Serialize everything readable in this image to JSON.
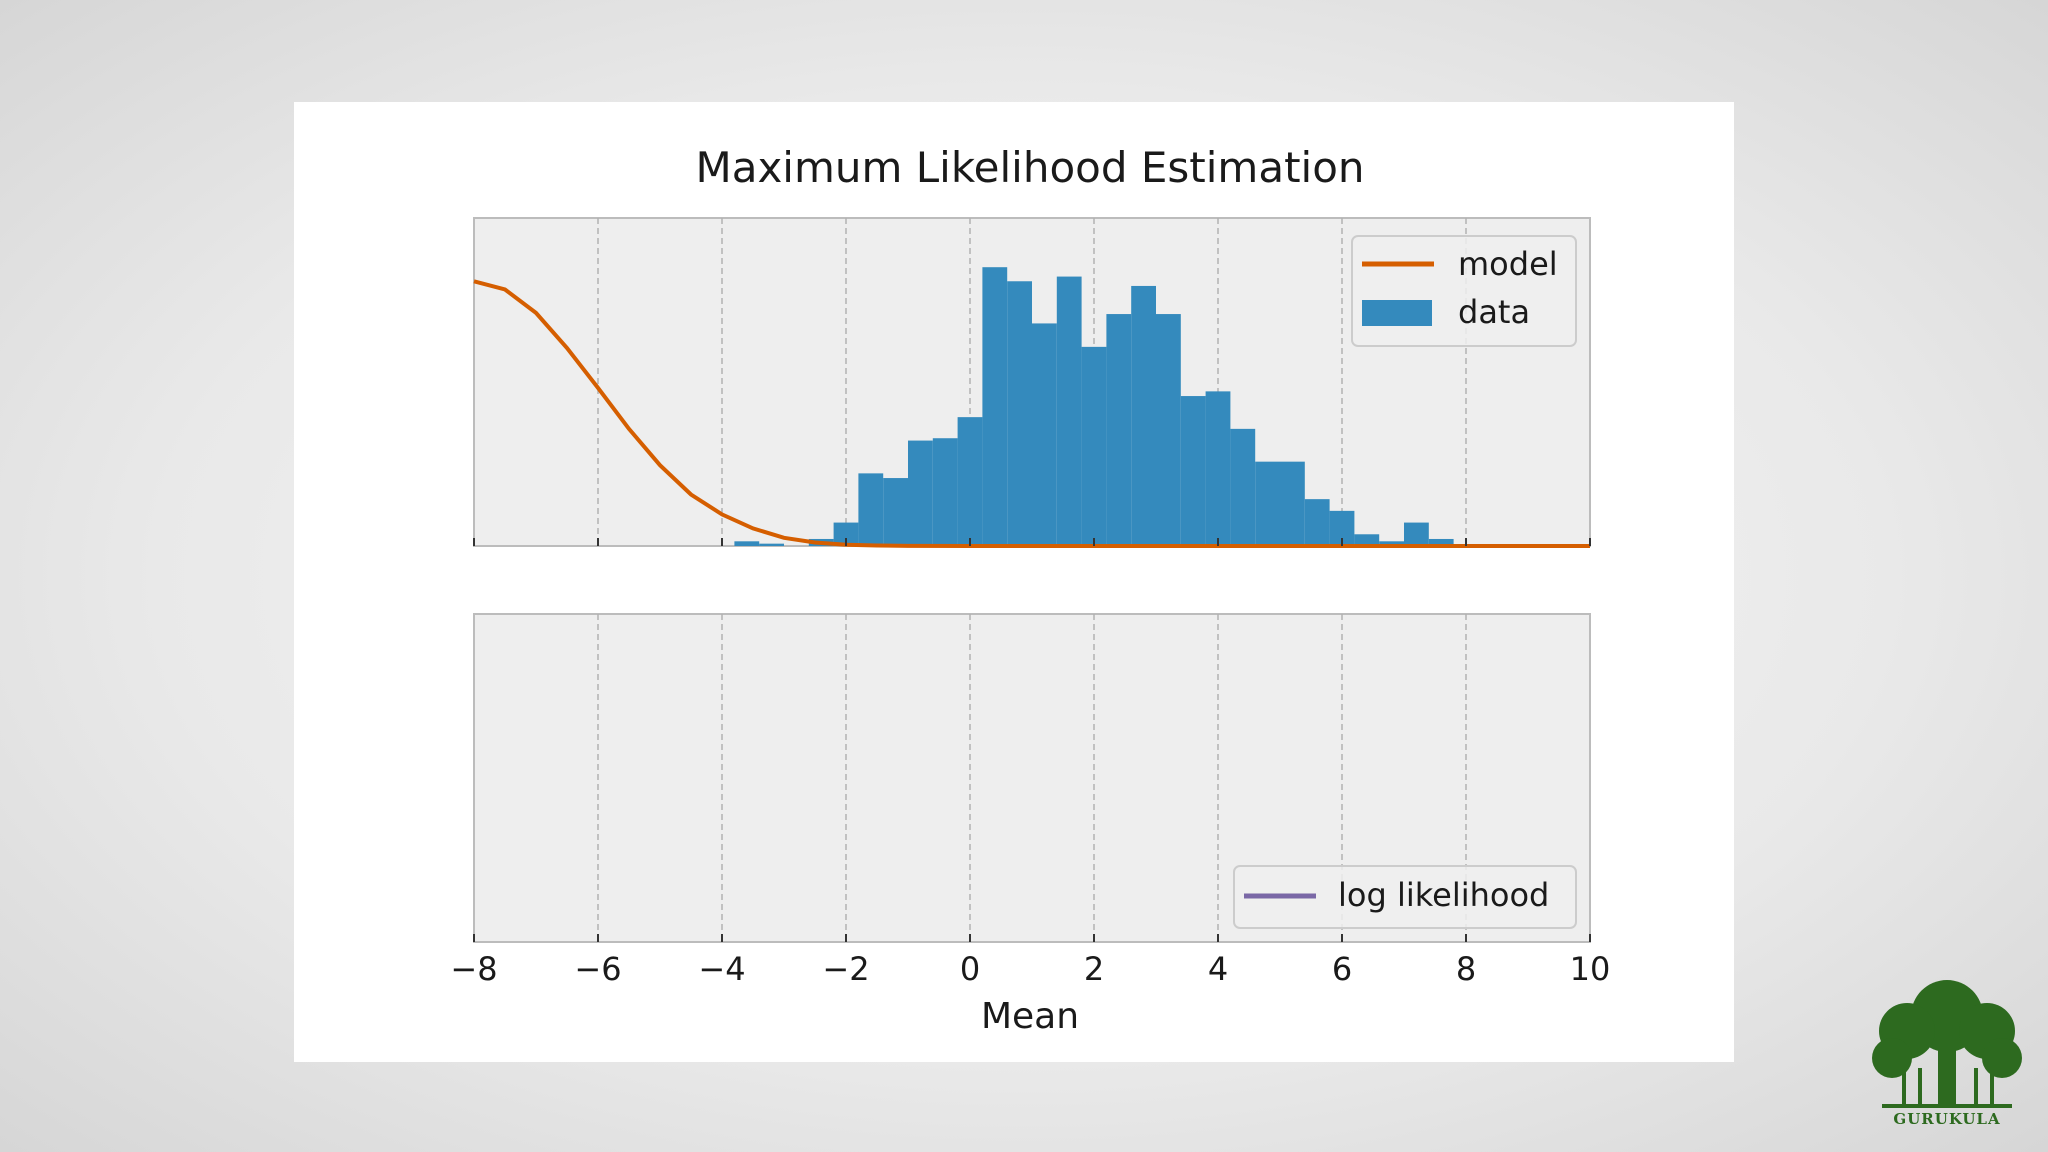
{
  "chart_data": {
    "type": "bar",
    "title": "Maximum Likelihood Estimation",
    "xlabel": "Mean",
    "xlim": [
      -8,
      10
    ],
    "xticks": [
      -8,
      -6,
      -4,
      -2,
      0,
      2,
      4,
      6,
      8,
      10
    ],
    "xtick_labels": [
      "−8",
      "−6",
      "−4",
      "−2",
      "0",
      "2",
      "4",
      "6",
      "8",
      "10"
    ],
    "grid": "vertical dashed",
    "panels": [
      {
        "id": "top",
        "legend": {
          "position": "top-right",
          "entries": [
            "model",
            "data"
          ]
        },
        "ylim": [
          0,
          0.28
        ],
        "series": [
          {
            "name": "data",
            "kind": "histogram",
            "color": "#348abd",
            "bins": [
              {
                "x0": -3.8,
                "x1": -3.4,
                "y": 0.004
              },
              {
                "x0": -3.4,
                "x1": -3.0,
                "y": 0.002
              },
              {
                "x0": -2.6,
                "x1": -2.2,
                "y": 0.006
              },
              {
                "x0": -2.2,
                "x1": -1.8,
                "y": 0.02
              },
              {
                "x0": -1.8,
                "x1": -1.4,
                "y": 0.062
              },
              {
                "x0": -1.4,
                "x1": -1.0,
                "y": 0.058
              },
              {
                "x0": -1.0,
                "x1": -0.6,
                "y": 0.09
              },
              {
                "x0": -0.6,
                "x1": -0.2,
                "y": 0.092
              },
              {
                "x0": -0.2,
                "x1": 0.2,
                "y": 0.11
              },
              {
                "x0": 0.2,
                "x1": 0.6,
                "y": 0.238
              },
              {
                "x0": 0.6,
                "x1": 1.0,
                "y": 0.226
              },
              {
                "x0": 1.0,
                "x1": 1.4,
                "y": 0.19
              },
              {
                "x0": 1.4,
                "x1": 1.8,
                "y": 0.23
              },
              {
                "x0": 1.8,
                "x1": 2.2,
                "y": 0.17
              },
              {
                "x0": 2.2,
                "x1": 2.6,
                "y": 0.198
              },
              {
                "x0": 2.6,
                "x1": 3.0,
                "y": 0.222
              },
              {
                "x0": 3.0,
                "x1": 3.4,
                "y": 0.198
              },
              {
                "x0": 3.4,
                "x1": 3.8,
                "y": 0.128
              },
              {
                "x0": 3.8,
                "x1": 4.2,
                "y": 0.132
              },
              {
                "x0": 4.2,
                "x1": 4.6,
                "y": 0.1
              },
              {
                "x0": 4.6,
                "x1": 5.0,
                "y": 0.072
              },
              {
                "x0": 5.0,
                "x1": 5.4,
                "y": 0.072
              },
              {
                "x0": 5.4,
                "x1": 5.8,
                "y": 0.04
              },
              {
                "x0": 5.8,
                "x1": 6.2,
                "y": 0.03
              },
              {
                "x0": 6.2,
                "x1": 6.6,
                "y": 0.01
              },
              {
                "x0": 6.6,
                "x1": 7.0,
                "y": 0.004
              },
              {
                "x0": 7.0,
                "x1": 7.4,
                "y": 0.02
              },
              {
                "x0": 7.4,
                "x1": 7.8,
                "y": 0.006
              }
            ]
          },
          {
            "name": "model",
            "kind": "line",
            "color": "#d55e00",
            "x": [
              -8,
              -7.5,
              -7,
              -6.5,
              -6,
              -5.5,
              -5,
              -4.5,
              -4,
              -3.5,
              -3,
              -2.5,
              -2,
              -1.5,
              -1,
              0,
              2,
              4,
              6,
              8,
              10
            ],
            "y": [
              0.226,
              0.219,
              0.199,
              0.169,
              0.135,
              0.1,
              0.069,
              0.044,
              0.027,
              0.015,
              0.007,
              0.003,
              0.001,
              0.0004,
              0.0001,
              0,
              0,
              0,
              0,
              0,
              0
            ]
          }
        ]
      },
      {
        "id": "bottom",
        "legend": {
          "position": "bottom-right",
          "entries": [
            "log likelihood"
          ]
        },
        "series": [
          {
            "name": "log likelihood",
            "kind": "line",
            "color": "#7a68a6",
            "x": [],
            "y": []
          }
        ]
      }
    ]
  },
  "logo": {
    "text": "GURUKULA",
    "color": "#2d6a1f"
  }
}
